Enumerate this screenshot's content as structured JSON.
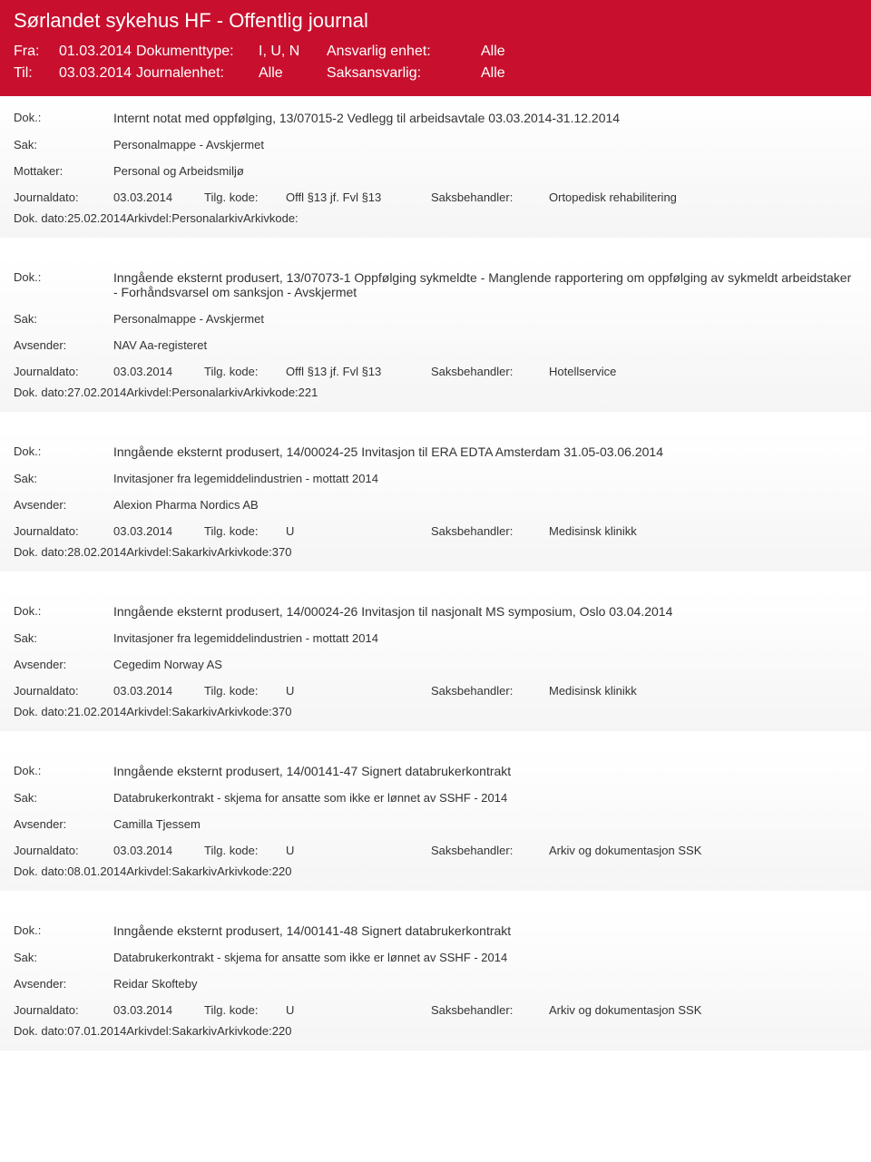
{
  "header": {
    "title": "Sørlandet sykehus HF - Offentlig journal",
    "fra_label": "Fra:",
    "fra_value": "01.03.2014",
    "til_label": "Til:",
    "til_value": "03.03.2014",
    "doktype_label": "Dokumenttype:",
    "doktype_value": "I, U, N",
    "journalenhet_label": "Journalenhet:",
    "journalenhet_value": "Alle",
    "ansvarlig_label": "Ansvarlig enhet:",
    "ansvarlig_value": "Alle",
    "saksansvarlig_label": "Saksansvarlig:",
    "saksansvarlig_value": "Alle"
  },
  "labels": {
    "dok": "Dok.:",
    "sak": "Sak:",
    "mottaker": "Mottaker:",
    "avsender": "Avsender:",
    "journaldato": "Journaldato:",
    "dokdato": "Dok. dato:",
    "tilgkode": "Tilg. kode:",
    "arkivdel": "Arkivdel:",
    "saksbehandler": "Saksbehandler:",
    "arkivkode": "Arkivkode:"
  },
  "entries": [
    {
      "dok": "Internt notat med oppfølging, 13/07015-2 Vedlegg til arbeidsavtale 03.03.2014-31.12.2014",
      "sak": "Personalmappe - Avskjermet",
      "party_label": "Mottaker:",
      "party": "Personal og Arbeidsmiljø",
      "journaldato": "03.03.2014",
      "tilgkode": "Offl §13 jf. Fvl §13",
      "saksbehandler": "Ortopedisk rehabilitering",
      "dokdato": "25.02.2014",
      "arkivdel": "Personalarkiv",
      "arkivkode": ""
    },
    {
      "dok": "Inngående eksternt produsert, 13/07073-1 Oppfølging sykmeldte - Manglende rapportering om oppfølging av sykmeldt arbeidstaker - Forhåndsvarsel om sanksjon - Avskjermet",
      "sak": "Personalmappe - Avskjermet",
      "party_label": "Avsender:",
      "party": "NAV Aa-registeret",
      "journaldato": "03.03.2014",
      "tilgkode": "Offl §13 jf. Fvl §13",
      "saksbehandler": "Hotellservice",
      "dokdato": "27.02.2014",
      "arkivdel": "Personalarkiv",
      "arkivkode": "221"
    },
    {
      "dok": "Inngående eksternt produsert, 14/00024-25 Invitasjon til ERA EDTA Amsterdam 31.05-03.06.2014",
      "sak": "Invitasjoner fra legemiddelindustrien - mottatt 2014",
      "party_label": "Avsender:",
      "party": "Alexion Pharma Nordics AB",
      "journaldato": "03.03.2014",
      "tilgkode": "U",
      "saksbehandler": "Medisinsk klinikk",
      "dokdato": "28.02.2014",
      "arkivdel": "Sakarkiv",
      "arkivkode": "370"
    },
    {
      "dok": "Inngående eksternt produsert, 14/00024-26 Invitasjon til nasjonalt MS symposium, Oslo 03.04.2014",
      "sak": "Invitasjoner fra legemiddelindustrien - mottatt 2014",
      "party_label": "Avsender:",
      "party": "Cegedim Norway AS",
      "journaldato": "03.03.2014",
      "tilgkode": "U",
      "saksbehandler": "Medisinsk klinikk",
      "dokdato": "21.02.2014",
      "arkivdel": "Sakarkiv",
      "arkivkode": "370"
    },
    {
      "dok": "Inngående eksternt produsert, 14/00141-47 Signert databrukerkontrakt",
      "sak": "Databrukerkontrakt - skjema for ansatte som ikke er lønnet av SSHF - 2014",
      "party_label": "Avsender:",
      "party": "Camilla Tjessem",
      "journaldato": "03.03.2014",
      "tilgkode": "U",
      "saksbehandler": "Arkiv og dokumentasjon SSK",
      "dokdato": "08.01.2014",
      "arkivdel": "Sakarkiv",
      "arkivkode": "220"
    },
    {
      "dok": "Inngående eksternt produsert, 14/00141-48 Signert databrukerkontrakt",
      "sak": "Databrukerkontrakt - skjema for ansatte som ikke er lønnet av SSHF - 2014",
      "party_label": "Avsender:",
      "party": "Reidar Skofteby",
      "journaldato": "03.03.2014",
      "tilgkode": "U",
      "saksbehandler": "Arkiv og dokumentasjon SSK",
      "dokdato": "07.01.2014",
      "arkivdel": "Sakarkiv",
      "arkivkode": "220"
    }
  ]
}
